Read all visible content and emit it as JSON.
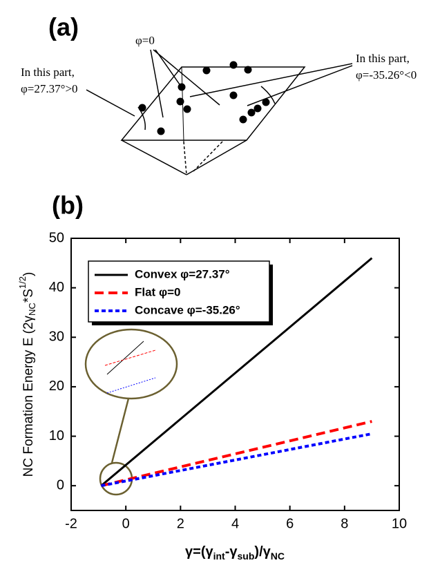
{
  "panel_a": {
    "label": "(a)",
    "flat_label": "φ=0",
    "left_label": [
      "In this part,",
      "φ=27.37°>0"
    ],
    "right_label": [
      "In this part,",
      "φ=-35.26°<0"
    ]
  },
  "chart_data": {
    "type": "line",
    "label": "(b)",
    "x": [
      -0.9,
      9
    ],
    "series": [
      {
        "name": "Convex φ=27.37°",
        "color": "#000000",
        "values": [
          0,
          46
        ]
      },
      {
        "name": "Flat φ=0",
        "color": "#ff0000",
        "values": [
          0,
          13
        ]
      },
      {
        "name": "Concave φ=-35.26°",
        "color": "#0000ff",
        "values": [
          0,
          10.5
        ]
      }
    ],
    "xlim": [
      -2,
      10
    ],
    "xticks": [
      -2,
      0,
      2,
      4,
      6,
      8,
      10
    ],
    "ylim": [
      -5,
      50
    ],
    "yticks": [
      0,
      10,
      20,
      30,
      40,
      50
    ],
    "y_label": {
      "main": "NC Formation Energy E (2γ",
      "sub": "NC",
      "mid": "*S",
      "sup": "1/2",
      "end": ")"
    },
    "x_label": {
      "a": "γ=(γ",
      "b": "int",
      "c": "-γ",
      "d": "sub",
      "e": ")/γ",
      "f": "NC"
    }
  }
}
